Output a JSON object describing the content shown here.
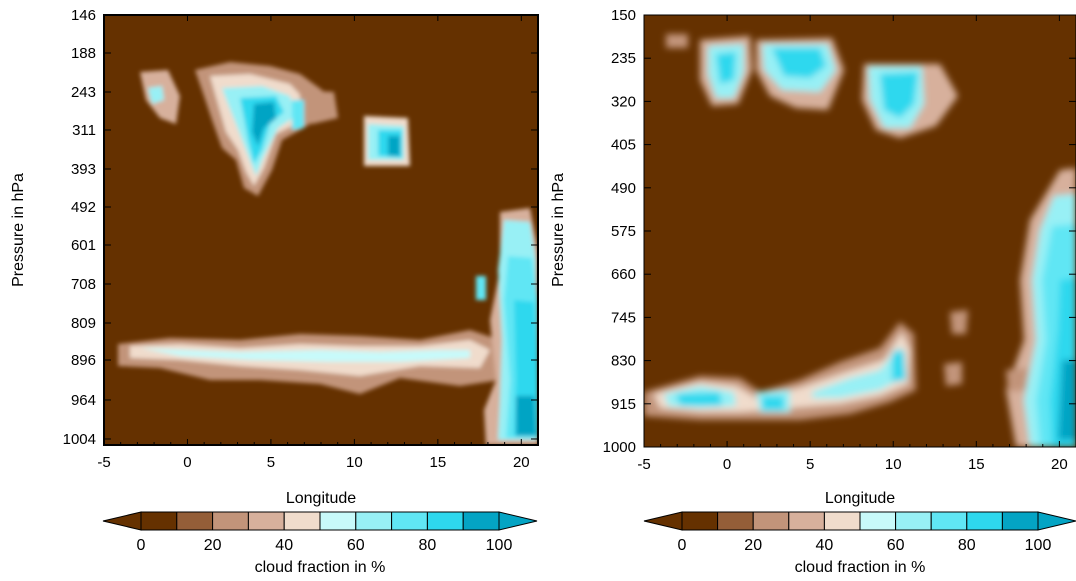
{
  "chart_data": [
    {
      "type": "heatmap",
      "panel": "left",
      "xlabel": "Longitude",
      "ylabel": "Pressure in hPa",
      "xlim": [
        -5,
        21
      ],
      "x_ticks": [
        "-5",
        "0",
        "5",
        "10",
        "15",
        "20"
      ],
      "y_ticks": [
        "146",
        "188",
        "243",
        "311",
        "393",
        "492",
        "601",
        "708",
        "809",
        "896",
        "964",
        "1004"
      ],
      "y_scale": "categorical model levels (top to bottom)",
      "background_value": 0,
      "cloud_regions": [
        {
          "lon_range": [
            2.5,
            7
          ],
          "pressure_range": [
            188,
            393
          ],
          "max_percent": 95
        },
        {
          "lon_range": [
            -3,
            0
          ],
          "pressure_range": [
            230,
            290
          ],
          "max_percent": 50
        },
        {
          "lon_range": [
            11,
            13
          ],
          "pressure_range": [
            311,
            393
          ],
          "max_percent": 90
        },
        {
          "lon_range": [
            -2,
            20
          ],
          "pressure_range": [
            850,
            964
          ],
          "max_percent": 60
        },
        {
          "lon_range": [
            17,
            21
          ],
          "pressure_range": [
            492,
            1004
          ],
          "max_percent": 95
        }
      ]
    },
    {
      "type": "heatmap",
      "panel": "right",
      "xlabel": "Longitude",
      "ylabel": "Pressure in hPa",
      "xlim": [
        -5,
        21
      ],
      "x_ticks": [
        "-5",
        "0",
        "5",
        "10",
        "15",
        "20"
      ],
      "y_ticks": [
        "150",
        "235",
        "320",
        "405",
        "490",
        "575",
        "660",
        "745",
        "830",
        "915",
        "1000"
      ],
      "y_scale": "linear",
      "background_value": 0,
      "cloud_regions": [
        {
          "lon_range": [
            -1,
            1
          ],
          "pressure_range": [
            180,
            310
          ],
          "max_percent": 80
        },
        {
          "lon_range": [
            2,
            7
          ],
          "pressure_range": [
            190,
            310
          ],
          "max_percent": 85
        },
        {
          "lon_range": [
            8.5,
            13
          ],
          "pressure_range": [
            240,
            360
          ],
          "max_percent": 85
        },
        {
          "lon_range": [
            -5,
            4
          ],
          "pressure_range": [
            860,
            950
          ],
          "max_percent": 80
        },
        {
          "lon_range": [
            5,
            11
          ],
          "pressure_range": [
            760,
            930
          ],
          "max_percent": 90
        },
        {
          "lon_range": [
            18,
            21
          ],
          "pressure_range": [
            480,
            1000
          ],
          "max_percent": 95
        }
      ]
    }
  ],
  "colorbar": {
    "label": "cloud fraction in %",
    "tick_labels": [
      "0",
      "20",
      "40",
      "60",
      "80",
      "100"
    ],
    "levels": [
      0,
      10,
      20,
      30,
      40,
      50,
      60,
      70,
      80,
      90,
      100
    ],
    "colors": [
      "#653100",
      "#945e38",
      "#c2947a",
      "#d7b09c",
      "#f0dccc",
      "#c8fafa",
      "#98f0f5",
      "#60e6f4",
      "#2ed8ee",
      "#04a4c4"
    ],
    "extend": "both"
  },
  "panels": [
    {
      "xlabel": "Longitude",
      "ylabel": "Pressure in hPa",
      "x_ticks": [
        "-5",
        "0",
        "5",
        "10",
        "15",
        "20"
      ],
      "y_ticks": [
        "146",
        "188",
        "243",
        "311",
        "393",
        "492",
        "601",
        "708",
        "809",
        "896",
        "964",
        "1004"
      ]
    },
    {
      "xlabel": "Longitude",
      "ylabel": "Pressure in hPa",
      "x_ticks": [
        "-5",
        "0",
        "5",
        "10",
        "15",
        "20"
      ],
      "y_ticks": [
        "150",
        "235",
        "320",
        "405",
        "490",
        "575",
        "660",
        "745",
        "830",
        "915",
        "1000"
      ]
    }
  ],
  "colorbars": [
    {
      "tick_labels": [
        "0",
        "20",
        "40",
        "60",
        "80",
        "100"
      ],
      "label": "cloud fraction in %"
    },
    {
      "tick_labels": [
        "0",
        "20",
        "40",
        "60",
        "80",
        "100"
      ],
      "label": "cloud fraction in %"
    }
  ]
}
